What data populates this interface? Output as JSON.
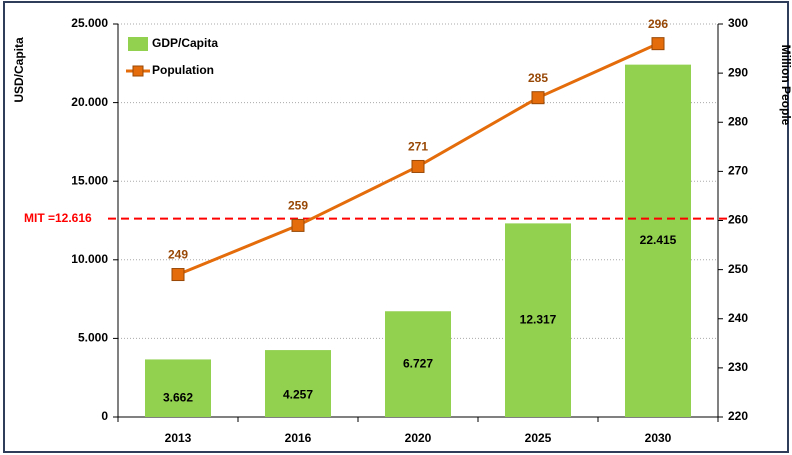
{
  "chart_data": {
    "type": "bar_line",
    "categories": [
      "2013",
      "2016",
      "2020",
      "2025",
      "2030"
    ],
    "y_label": "USD/Capita",
    "y2_label": "Million People",
    "series": [
      {
        "name": "GDP/Capita",
        "type": "bar",
        "color": "#92d050",
        "values": [
          3662,
          4257,
          6727,
          12317,
          22415
        ],
        "value_labels": [
          "3.662",
          "4.257",
          "6.727",
          "12.317",
          "22.415"
        ]
      },
      {
        "name": "Population",
        "type": "line",
        "axis": "y2",
        "color": "#e46c0a",
        "values": [
          249,
          259,
          271,
          285,
          296
        ]
      }
    ],
    "ylim": [
      0,
      25000
    ],
    "yticks": [
      {
        "value": 0,
        "label": "0"
      },
      {
        "value": 5000,
        "label": "5.000"
      },
      {
        "value": 10000,
        "label": "10.000"
      },
      {
        "value": 15000,
        "label": "15.000"
      },
      {
        "value": 20000,
        "label": "20.000"
      },
      {
        "value": 25000,
        "label": "25.000"
      }
    ],
    "y2lim": [
      220,
      300
    ],
    "y2ticks": [
      220,
      230,
      240,
      250,
      260,
      270,
      280,
      290,
      300
    ],
    "reference_line": {
      "value": 12616,
      "label": "MIT =12.616",
      "color": "#ff0000"
    },
    "grid": true,
    "legend": "upper left"
  }
}
